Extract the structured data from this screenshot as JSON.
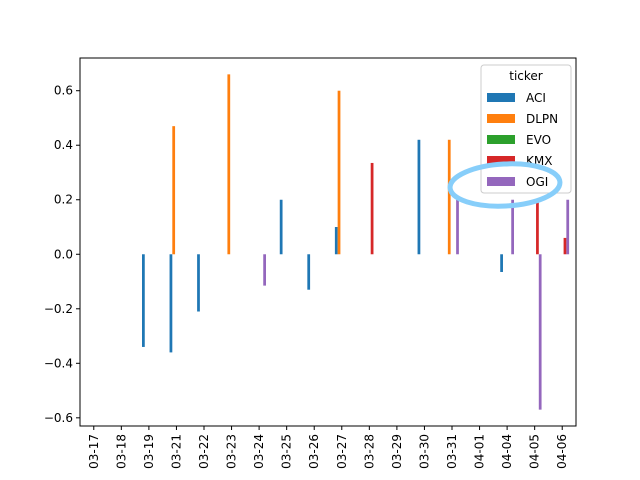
{
  "chart_data": {
    "type": "bar",
    "categories": [
      "03-17",
      "03-18",
      "03-19",
      "03-21",
      "03-22",
      "03-23",
      "03-24",
      "03-25",
      "03-26",
      "03-27",
      "03-28",
      "03-29",
      "03-30",
      "03-31",
      "04-01",
      "04-04",
      "04-05",
      "04-06"
    ],
    "series": [
      {
        "name": "ACI",
        "color": "#1f77b4",
        "values": [
          null,
          null,
          -0.34,
          -0.36,
          -0.21,
          null,
          null,
          0.2,
          -0.13,
          0.1,
          null,
          null,
          0.42,
          null,
          null,
          -0.065,
          null,
          null
        ]
      },
      {
        "name": "DLPN",
        "color": "#ff7f0e",
        "values": [
          null,
          null,
          null,
          0.47,
          null,
          0.66,
          null,
          null,
          null,
          0.6,
          null,
          null,
          null,
          0.42,
          null,
          null,
          null,
          null
        ]
      },
      {
        "name": "EVO",
        "color": "#2ca02c",
        "values": [
          null,
          null,
          null,
          null,
          null,
          null,
          null,
          null,
          null,
          null,
          null,
          null,
          null,
          null,
          null,
          null,
          null,
          null
        ]
      },
      {
        "name": "KMX",
        "color": "#d62728",
        "values": [
          null,
          null,
          null,
          null,
          null,
          null,
          null,
          null,
          null,
          null,
          0.335,
          null,
          null,
          null,
          null,
          null,
          0.19,
          0.06
        ]
      },
      {
        "name": "OGI",
        "color": "#9467bd",
        "values": [
          null,
          null,
          null,
          null,
          null,
          null,
          -0.115,
          null,
          null,
          null,
          null,
          null,
          null,
          0.2,
          null,
          0.2,
          -0.57,
          0.2
        ]
      }
    ],
    "ylim": [
      -0.63,
      0.72
    ],
    "yticks": [
      "0.6",
      "0.4",
      "0.2",
      "0.0",
      "−0.2",
      "−0.4",
      "−0.6"
    ],
    "ytick_values": [
      0.6,
      0.4,
      0.2,
      0.0,
      -0.2,
      -0.4,
      -0.6
    ],
    "legend": {
      "title": "ticker",
      "placement": "top-right"
    },
    "annotation": {
      "shape": "hand-drawn ellipse",
      "color": "#87cefa",
      "target": "OGI"
    }
  }
}
